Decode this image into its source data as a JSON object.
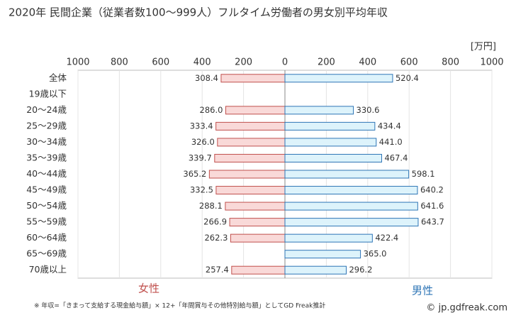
{
  "chart_data": {
    "type": "butterfly-bar",
    "title": "2020年 民間企業（従業者数100〜999人）フルタイム労働者の男女別平均年収",
    "unit": "[万円]",
    "categories": [
      "全体",
      "19歳以下",
      "20〜24歳",
      "25〜29歳",
      "30〜34歳",
      "35〜39歳",
      "40〜44歳",
      "45〜49歳",
      "50〜54歳",
      "55〜59歳",
      "60〜64歳",
      "65〜69歳",
      "70歳以上"
    ],
    "series": [
      {
        "name": "女性",
        "color": "#c0504d",
        "fill": "#f9d9d8",
        "side": "left",
        "values": [
          308.4,
          null,
          286.0,
          333.4,
          326.0,
          339.7,
          365.2,
          332.5,
          288.1,
          266.9,
          262.3,
          null,
          257.4
        ],
        "value_labels": [
          "308.4",
          null,
          "286.0",
          "333.4",
          "326.0",
          "339.7",
          "365.2",
          "332.5",
          "288.1",
          "266.9",
          "262.3",
          null,
          "257.4"
        ]
      },
      {
        "name": "男性",
        "color": "#2e75b6",
        "fill": "#ddf3fb",
        "side": "right",
        "values": [
          520.4,
          null,
          330.6,
          434.4,
          441.0,
          467.4,
          598.1,
          640.2,
          641.6,
          643.7,
          422.4,
          365.0,
          296.2
        ],
        "value_labels": [
          "520.4",
          null,
          "330.6",
          "434.4",
          "441.0",
          "467.4",
          "598.1",
          "640.2",
          "641.6",
          "643.7",
          "422.4",
          "365.0",
          "296.2"
        ]
      }
    ],
    "xlim_left": [
      1000,
      0
    ],
    "xticks_left": [
      1000,
      800,
      600,
      400,
      200
    ],
    "xlim_right": [
      0,
      1000
    ],
    "xticks_right": [
      0,
      200,
      400,
      600,
      800,
      1000
    ],
    "grid": true,
    "footnote": "※ 年収=「きまって支給する現金給与額」× 12+「年間賞与その他特別給与額」としてGD Freak推計",
    "credit": "© jp.gdfreak.com"
  }
}
